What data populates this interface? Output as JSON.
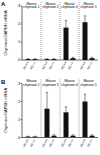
{
  "chart_data": [
    {
      "type": "bar",
      "title": "A",
      "y_label": "Chymase/GAPDH mRNA",
      "categories": [
        "Mouse chymase 1",
        "Mouse chymase 2",
        "Mouse chymase 4",
        "Mouse chymase 5"
      ],
      "series": [
        {
          "name": "MC+/+",
          "color": "#111111",
          "values": [
            0.05,
            0.05,
            1.8,
            2.1
          ],
          "errors": [
            0.02,
            0.02,
            0.4,
            0.35
          ]
        },
        {
          "name": "MC−/−",
          "color": "#111111",
          "values": [
            0.05,
            0.05,
            0.1,
            0.1
          ],
          "errors": [
            0.02,
            0.02,
            0.05,
            0.05
          ]
        }
      ],
      "ylim": [
        0,
        3
      ],
      "yticks": [
        0,
        1,
        2,
        3
      ]
    },
    {
      "type": "bar",
      "title": "B",
      "y_label": "Chymase/GAPDH mRNA",
      "categories": [
        "Mouse chymase 1",
        "Mouse chymase 2",
        "Mouse chymase 4",
        "Mouse chymase 5"
      ],
      "series": [
        {
          "name": "MC+/+",
          "color": "#111111",
          "values": [
            0.05,
            1.6,
            1.4,
            2.0
          ],
          "errors": [
            0.02,
            0.9,
            0.3,
            0.4
          ]
        },
        {
          "name": "MC−/−",
          "color": "#111111",
          "values": [
            0.05,
            0.1,
            0.1,
            0.1
          ],
          "errors": [
            0.02,
            0.05,
            0.05,
            0.05
          ]
        }
      ],
      "ylim": [
        0,
        3
      ],
      "yticks": [
        0,
        1,
        2,
        3
      ]
    }
  ]
}
